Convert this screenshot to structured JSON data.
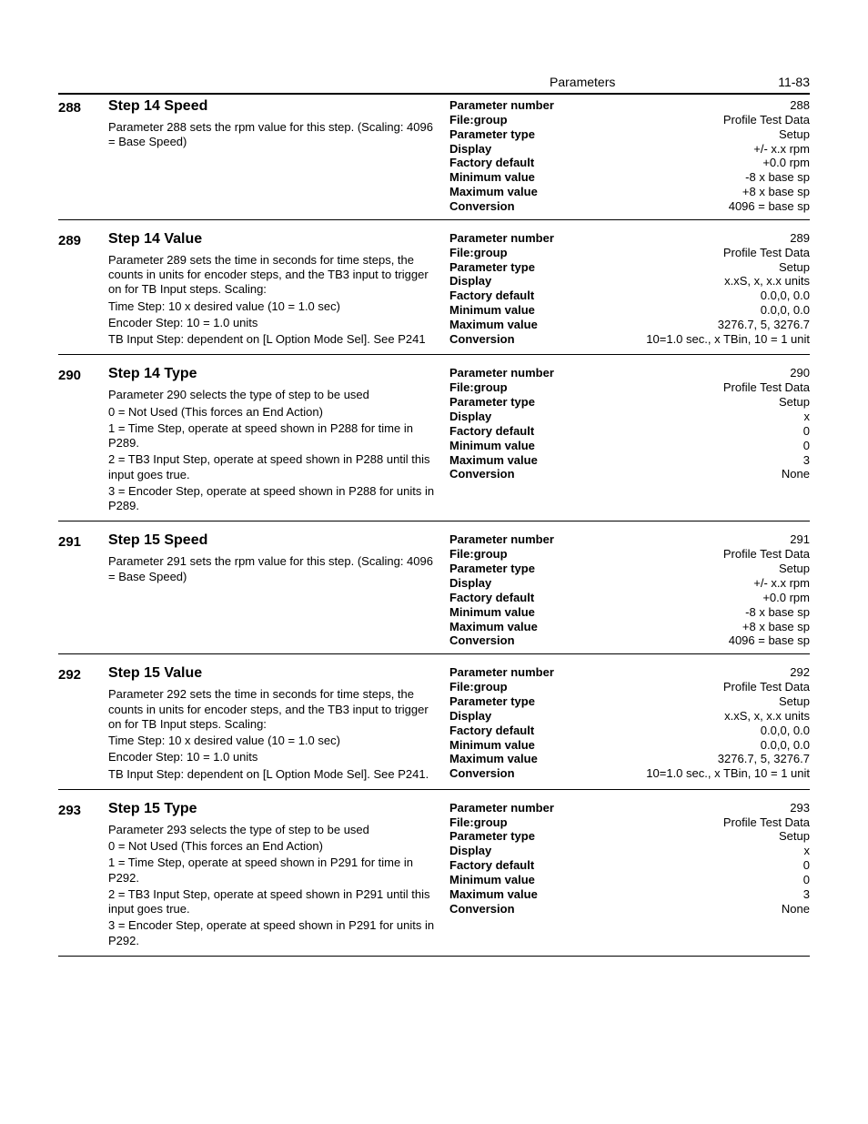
{
  "page": {
    "header_title": "Parameters",
    "page_number": "11-83"
  },
  "prop_labels": {
    "parameter_number": "Parameter number",
    "file_group": "File:group",
    "parameter_type": "Parameter type",
    "display": "Display",
    "factory_default": "Factory default",
    "minimum_value": "Minimum value",
    "maximum_value": "Maximum value",
    "conversion": "Conversion"
  },
  "entries": [
    {
      "num": "288",
      "title": "Step 14 Speed",
      "desc_lines": [
        "Parameter 288 sets the rpm value for this step. (Scaling: 4096 = Base Speed)"
      ],
      "props": {
        "parameter_number": "288",
        "file_group": "Profile Test Data",
        "parameter_type": "Setup",
        "display": "+/- x.x rpm",
        "factory_default": "+0.0 rpm",
        "minimum_value": "-8 x base sp",
        "maximum_value": "+8 x base sp",
        "conversion": "4096 = base sp"
      }
    },
    {
      "num": "289",
      "title": "Step 14 Value",
      "desc_lines": [
        "Parameter 289 sets the time in seconds for time steps, the counts in units for encoder steps, and the TB3 input to trigger on for TB Input steps. Scaling:",
        "Time Step: 10 x desired value (10 = 1.0 sec)",
        "Encoder Step: 10 = 1.0 units",
        "TB Input Step: dependent on [L Option Mode Sel]. See P241"
      ],
      "props": {
        "parameter_number": "289",
        "file_group": "Profile Test Data",
        "parameter_type": "Setup",
        "display": "x.xS, x, x.x units",
        "factory_default": "0.0,0, 0.0",
        "minimum_value": "0.0,0, 0.0",
        "maximum_value": "3276.7, 5, 3276.7",
        "conversion": "10=1.0 sec., x TBin, 10 = 1 unit"
      }
    },
    {
      "num": "290",
      "title": "Step 14 Type",
      "desc_lines": [
        "Parameter 290 selects the type of step to be used",
        "0 = Not Used (This forces an End Action)",
        "1 = Time Step, operate at speed shown in P288 for time in P289.",
        "2 = TB3 Input Step, operate at speed shown in P288 until this input goes true.",
        "3 = Encoder Step, operate at speed shown in P288 for units in P289."
      ],
      "props": {
        "parameter_number": "290",
        "file_group": "Profile Test Data",
        "parameter_type": "Setup",
        "display": "x",
        "factory_default": "0",
        "minimum_value": "0",
        "maximum_value": "3",
        "conversion": "None"
      }
    },
    {
      "num": "291",
      "title": "Step 15 Speed",
      "desc_lines": [
        "Parameter 291 sets the rpm value for this step. (Scaling: 4096 = Base Speed)"
      ],
      "props": {
        "parameter_number": "291",
        "file_group": "Profile Test Data",
        "parameter_type": "Setup",
        "display": "+/- x.x rpm",
        "factory_default": "+0.0 rpm",
        "minimum_value": "-8 x base sp",
        "maximum_value": "+8 x base sp",
        "conversion": "4096 = base sp"
      }
    },
    {
      "num": "292",
      "title": "Step 15 Value",
      "desc_lines": [
        "Parameter 292 sets the time in seconds for time steps, the counts in units for encoder steps, and the TB3 input to trigger on for TB Input steps. Scaling:",
        "Time Step: 10 x desired value (10 = 1.0 sec)",
        "Encoder Step: 10 = 1.0 units",
        "TB Input Step: dependent on [L Option Mode Sel]. See P241."
      ],
      "props": {
        "parameter_number": "292",
        "file_group": "Profile Test Data",
        "parameter_type": "Setup",
        "display": "x.xS, x, x.x units",
        "factory_default": "0.0,0, 0.0",
        "minimum_value": "0.0,0, 0.0",
        "maximum_value": "3276.7, 5, 3276.7",
        "conversion": "10=1.0 sec., x TBin, 10 = 1 unit"
      }
    },
    {
      "num": "293",
      "title": "Step 15 Type",
      "desc_lines": [
        "Parameter 293 selects the type of step to be used",
        "0 = Not Used (This forces an End Action)",
        "1 = Time Step, operate at speed shown in P291 for time in P292.",
        "2 = TB3 Input Step, operate at speed shown in P291 until this input goes true.",
        "3 = Encoder Step, operate at speed shown in P291 for units in P292."
      ],
      "props": {
        "parameter_number": "293",
        "file_group": "Profile Test Data",
        "parameter_type": "Setup",
        "display": "x",
        "factory_default": "0",
        "minimum_value": "0",
        "maximum_value": "3",
        "conversion": "None"
      }
    }
  ]
}
